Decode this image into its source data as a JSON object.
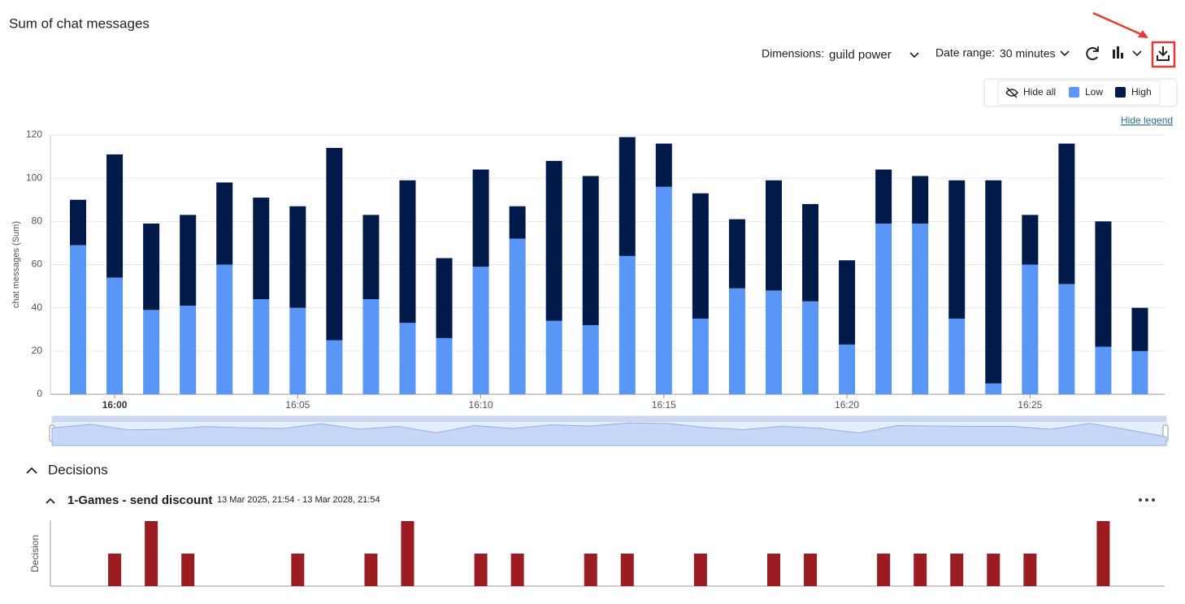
{
  "header": {
    "title": "Sum of chat messages"
  },
  "toolbar": {
    "dimensions_label": "Dimensions:",
    "dimensions_value": "guild power",
    "date_range_label": "Date range:",
    "date_range_value": "30 minutes"
  },
  "legend_panel": {
    "hide_all": "Hide all",
    "hide_legend": "Hide legend"
  },
  "chart_data": {
    "type": "stacked_bar",
    "y_label": "chat messages (Sum)",
    "categories": [
      null,
      "16:00",
      null,
      null,
      null,
      null,
      "16:05",
      null,
      null,
      null,
      null,
      "16:10",
      null,
      null,
      null,
      null,
      "16:15",
      null,
      null,
      null,
      null,
      "16:20",
      null,
      null,
      null,
      null,
      "16:25",
      null,
      null,
      null
    ],
    "series": [
      {
        "name": "Low",
        "color": "#5a96f5",
        "values": [
          69,
          54,
          39,
          41,
          60,
          44,
          40,
          25,
          44,
          33,
          26,
          59,
          72,
          34,
          32,
          64,
          96,
          35,
          49,
          48,
          43,
          23,
          79,
          79,
          35,
          5,
          60,
          51,
          22,
          20
        ]
      },
      {
        "name": "High",
        "color": "#011a4a",
        "values": [
          21,
          57,
          40,
          42,
          38,
          47,
          47,
          89,
          39,
          66,
          37,
          45,
          15,
          74,
          69,
          55,
          20,
          58,
          32,
          51,
          45,
          39,
          25,
          22,
          64,
          94,
          23,
          65,
          58,
          20
        ]
      }
    ],
    "ylim": [
      0,
      120
    ],
    "yticks": [
      0,
      20,
      40,
      60,
      80,
      100,
      120
    ],
    "grid": true
  },
  "decisions": {
    "section_title": "Decisions",
    "item_title": "1-Games - send discount",
    "item_dates": "13 Mar 2025, 21:54 - 13 Mar 2028, 21:54",
    "y_label": "Decision",
    "color": "#9b1c21",
    "values": [
      null,
      1,
      2,
      1,
      null,
      null,
      1,
      null,
      1,
      2,
      null,
      1,
      1,
      null,
      1,
      1,
      null,
      1,
      null,
      1,
      1,
      null,
      1,
      1,
      1,
      1,
      1,
      null,
      2,
      null
    ]
  }
}
